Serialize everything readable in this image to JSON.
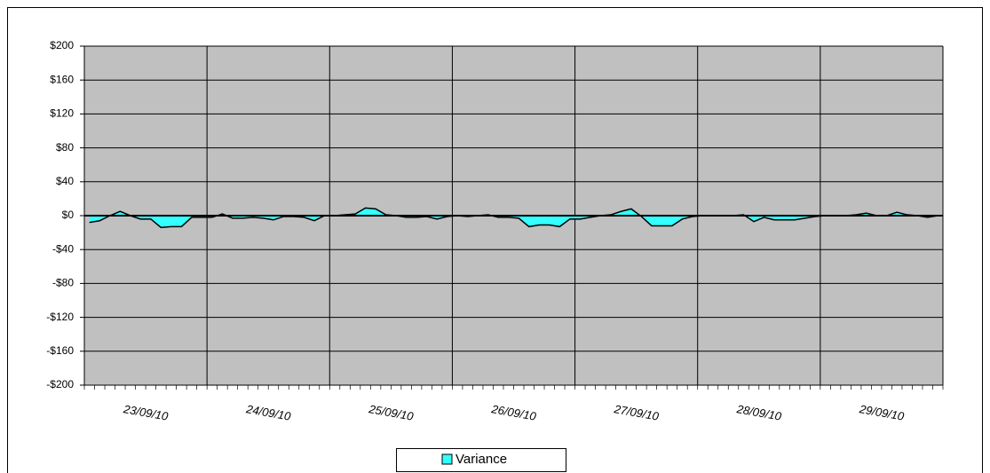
{
  "chart_data": {
    "type": "area",
    "categories": [
      null,
      null,
      null,
      null,
      null,
      null,
      "23/09/10",
      null,
      null,
      null,
      null,
      null,
      null,
      null,
      null,
      null,
      null,
      null,
      "24/09/10",
      null,
      null,
      null,
      null,
      null,
      null,
      null,
      null,
      null,
      null,
      null,
      "25/09/10",
      null,
      null,
      null,
      null,
      null,
      null,
      null,
      null,
      null,
      null,
      null,
      "26/09/10",
      null,
      null,
      null,
      null,
      null,
      null,
      null,
      null,
      null,
      null,
      null,
      "27/09/10",
      null,
      null,
      null,
      null,
      null,
      null,
      null,
      null,
      null,
      null,
      null,
      "28/09/10",
      null,
      null,
      null,
      null,
      null,
      null,
      null,
      null,
      null,
      null,
      null,
      "29/09/10",
      null,
      null,
      null,
      null,
      null
    ],
    "series": [
      {
        "name": "Variance",
        "color": "#33ffff",
        "values": [
          -8,
          -6,
          0,
          5,
          0,
          -4,
          -4,
          -14,
          -13,
          -13,
          -2,
          -2,
          -2,
          2,
          -3,
          -3,
          -2,
          -3,
          -5,
          -1,
          -1,
          -2,
          -6,
          0,
          0,
          1,
          2,
          9,
          8,
          1,
          0,
          -2,
          -2,
          -1,
          -4,
          -1,
          0,
          -1,
          0,
          1,
          -2,
          -2,
          -3,
          -13,
          -11,
          -11,
          -13,
          -4,
          -4,
          -2,
          0,
          1,
          5,
          8,
          -1,
          -12,
          -12,
          -12,
          -4,
          -1,
          0,
          0,
          0,
          0,
          1,
          -7,
          -2,
          -5,
          -5,
          -5,
          -3,
          -1,
          0,
          0,
          0,
          1,
          3,
          0,
          0,
          4,
          1,
          0,
          -2,
          0
        ]
      }
    ],
    "ylim": [
      -200,
      200
    ],
    "yticks": [
      {
        "value": -200,
        "label": "-$200"
      },
      {
        "value": -160,
        "label": "-$160"
      },
      {
        "value": -120,
        "label": "-$120"
      },
      {
        "value": -80,
        "label": "-$80"
      },
      {
        "value": -40,
        "label": "-$40"
      },
      {
        "value": 0,
        "label": "$0"
      },
      {
        "value": 40,
        "label": "$40"
      },
      {
        "value": 80,
        "label": "$80"
      },
      {
        "value": 120,
        "label": "$120"
      },
      {
        "value": 160,
        "label": "$160"
      },
      {
        "value": 200,
        "label": "$200"
      }
    ],
    "grid": true,
    "legend": "bottom"
  }
}
